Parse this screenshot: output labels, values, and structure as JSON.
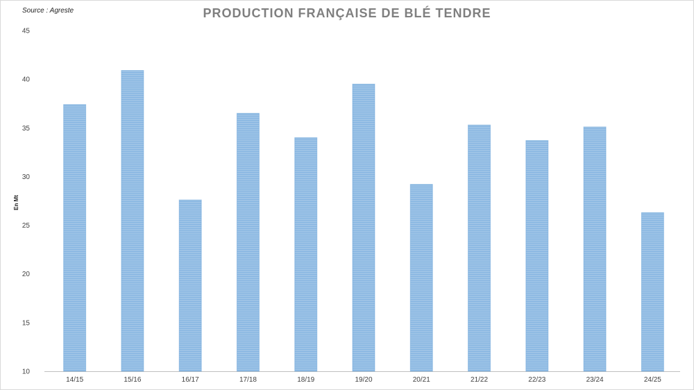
{
  "source": "Source : Agreste",
  "chart_data": {
    "type": "bar",
    "title": "PRODUCTION FRANÇAISE DE BLÉ TENDRE",
    "xlabel": "",
    "ylabel": "En Mt",
    "ylim": [
      10,
      45
    ],
    "yticks": [
      10,
      15,
      20,
      25,
      30,
      35,
      40,
      45
    ],
    "grid": false,
    "legend": "none",
    "categories": [
      "14/15",
      "15/16",
      "16/17",
      "17/18",
      "18/19",
      "19/20",
      "20/21",
      "21/22",
      "22/23",
      "23/24",
      "24/25"
    ],
    "values": [
      37.4,
      40.9,
      27.6,
      36.5,
      34.0,
      39.5,
      29.2,
      35.3,
      33.7,
      35.1,
      26.3
    ],
    "bar_color": "#9dc3e6",
    "bar_stripe_color": "#5b9bd5"
  }
}
